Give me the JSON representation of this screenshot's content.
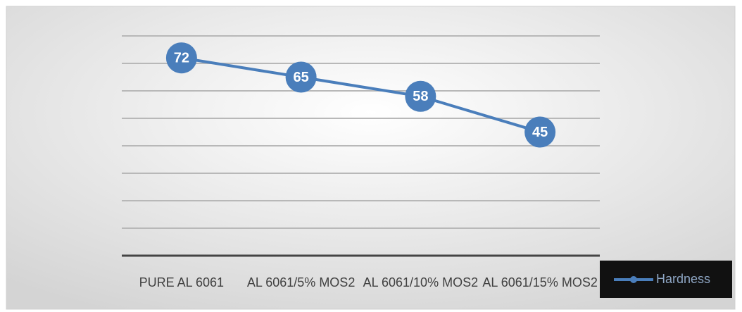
{
  "chart_data": {
    "type": "line",
    "categories": [
      "PURE AL 6061",
      "AL 6061/5% MOS2",
      "AL 6061/10% MOS2",
      "AL 6061/15% MOS2"
    ],
    "series": [
      {
        "name": "Hardness",
        "color": "#4a7ebb",
        "values": [
          72,
          65,
          58,
          45
        ]
      }
    ],
    "ylim": [
      0,
      80
    ],
    "yticks": [
      0,
      10,
      20,
      30,
      40,
      50,
      60,
      70,
      80
    ],
    "grid": true,
    "legend": "bottom-right"
  }
}
